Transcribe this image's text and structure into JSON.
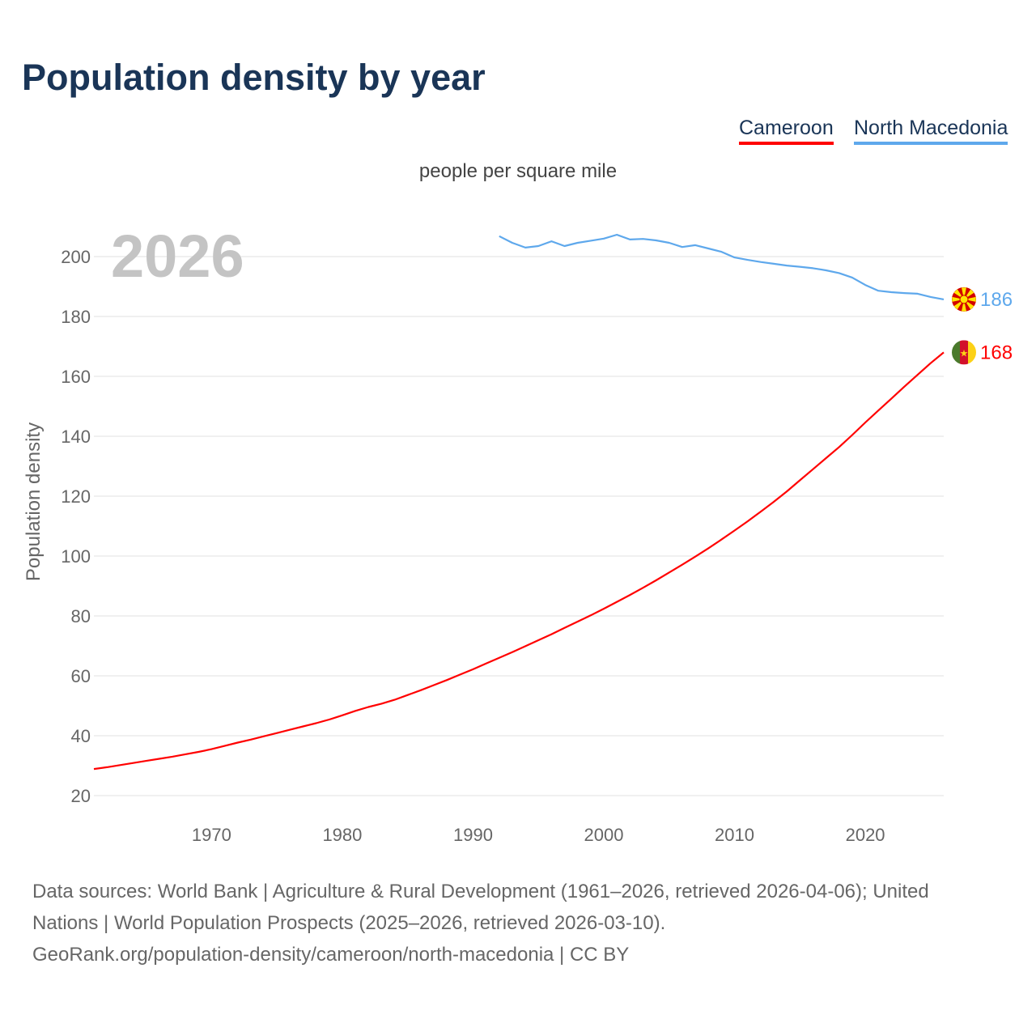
{
  "title": "Population density by year",
  "legend": {
    "cameroon": "Cameroon",
    "north_macedonia": "North Macedonia"
  },
  "subtitle": "people per square mile",
  "year_overlay": "2026",
  "footer": {
    "line1": "Data sources: World Bank | Agriculture & Rural Development (1961–2026, retrieved 2026-04-06); United",
    "line2": "Nations | World Population Prospects (2025–2026, retrieved 2026-03-10).",
    "line3": "GeoRank.org/population-density/cameroon/north-macedonia | CC BY"
  },
  "chart_data": {
    "type": "line",
    "title": "Population density by year",
    "ylabel": "Population density",
    "xlabel": "",
    "xlim": [
      1961,
      2026
    ],
    "ylim": [
      20,
      210
    ],
    "xticks": [
      1970,
      1980,
      1990,
      2000,
      2010,
      2020
    ],
    "yticks": [
      20,
      40,
      60,
      80,
      100,
      120,
      140,
      160,
      180,
      200
    ],
    "grid": true,
    "legend_position": "top-right",
    "series": [
      {
        "name": "Cameroon",
        "color": "#ff0000",
        "end_label": "168",
        "flag": "cameroon-flag",
        "x_start": 1961,
        "values": [
          28.9,
          29.5,
          30.2,
          30.9,
          31.6,
          32.3,
          33.0,
          33.8,
          34.6,
          35.5,
          36.6,
          37.7,
          38.7,
          39.8,
          40.9,
          42.0,
          43.1,
          44.2,
          45.4,
          46.8,
          48.3,
          49.6,
          50.7,
          52.0,
          53.6,
          55.2,
          56.9,
          58.6,
          60.4,
          62.2,
          64.1,
          66.0,
          67.9,
          69.9,
          71.9,
          73.9,
          76.0,
          78.1,
          80.2,
          82.4,
          84.7,
          87.0,
          89.4,
          91.9,
          94.5,
          97.1,
          99.8,
          102.6,
          105.5,
          108.5,
          111.6,
          114.8,
          118.1,
          121.6,
          125.3,
          129.0,
          132.7,
          136.4,
          140.4,
          144.6,
          148.6,
          152.6,
          156.6,
          160.5,
          164.4,
          168.0
        ]
      },
      {
        "name": "North Macedonia",
        "color": "#5ea8ec",
        "end_label": "186",
        "flag": "north-macedonia-flag",
        "x_start": 1992,
        "values": [
          206.8,
          204.6,
          203.0,
          203.5,
          205.1,
          203.5,
          204.6,
          205.3,
          206.0,
          207.3,
          205.7,
          205.9,
          205.4,
          204.6,
          203.2,
          203.8,
          202.7,
          201.6,
          199.7,
          198.9,
          198.2,
          197.6,
          197.0,
          196.6,
          196.1,
          195.4,
          194.5,
          193.0,
          190.5,
          188.6,
          188.1,
          187.8,
          187.6,
          186.5,
          185.7
        ]
      }
    ]
  }
}
